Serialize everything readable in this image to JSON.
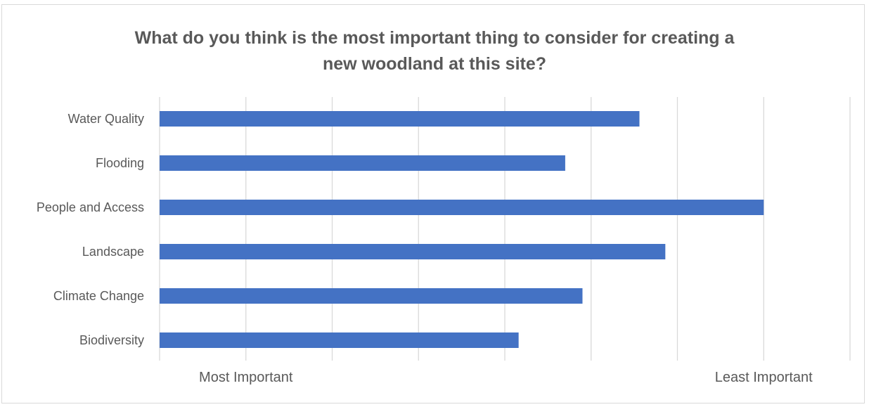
{
  "chart_data": {
    "type": "bar",
    "orientation": "horizontal",
    "title_lines": [
      "What do you think is the most important thing to consider for creating a",
      "new woodland at this site?"
    ],
    "categories": [
      "Water Quality",
      "Flooding",
      "People and Access",
      "Landscape",
      "Climate Change",
      "Biodiversity"
    ],
    "values": [
      3.78,
      3.35,
      4.5,
      3.93,
      3.45,
      3.08
    ],
    "xlim": [
      1,
      5
    ],
    "x_ticks": [
      1.5,
      2,
      2.5,
      3,
      3.5,
      4,
      4.5,
      5
    ],
    "x_tick_labels": [
      {
        "value": 1.5,
        "label": "Most Important"
      },
      {
        "value": 4.5,
        "label": "Least Important"
      }
    ],
    "grid": "vertical",
    "bar_color": "#4472c4",
    "grid_color": "#d9d9d9",
    "text_color": "#595959"
  }
}
